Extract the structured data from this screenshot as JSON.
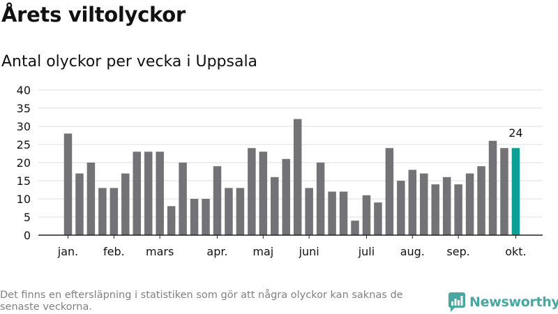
{
  "title": "Årets viltolyckor",
  "subtitle": "Antal olyckor per vecka i Uppsala",
  "footnote": "Det finns en eftersläpning i statistiken som gör att några olyckor kan saknas de senaste veckorna.",
  "brand": {
    "name": "Newsworthy",
    "icon": "newsworthy-logo-icon",
    "color": "#4aa6a0"
  },
  "colors": {
    "bar": "#737277",
    "highlight": "#0d9f96",
    "grid": "#dddddd",
    "axis": "#222222"
  },
  "chart_data": {
    "type": "bar",
    "title": "Årets viltolyckor",
    "subtitle": "Antal olyckor per vecka i Uppsala",
    "xlabel": "",
    "ylabel": "",
    "ylim": [
      0,
      40
    ],
    "yticks": [
      0,
      5,
      10,
      15,
      20,
      25,
      30,
      35,
      40
    ],
    "grid": true,
    "legend": false,
    "x_month_labels": [
      {
        "label": "jan.",
        "at_bar": 0
      },
      {
        "label": "feb.",
        "at_bar": 4
      },
      {
        "label": "mars",
        "at_bar": 8
      },
      {
        "label": "apr.",
        "at_bar": 13
      },
      {
        "label": "maj",
        "at_bar": 17
      },
      {
        "label": "juni",
        "at_bar": 21
      },
      {
        "label": "juli",
        "at_bar": 26
      },
      {
        "label": "aug.",
        "at_bar": 30
      },
      {
        "label": "sep.",
        "at_bar": 34
      },
      {
        "label": "okt.",
        "at_bar": 39
      }
    ],
    "values": [
      28,
      17,
      20,
      13,
      13,
      17,
      23,
      23,
      23,
      8,
      20,
      10,
      10,
      19,
      13,
      13,
      24,
      23,
      16,
      21,
      32,
      13,
      20,
      12,
      12,
      4,
      11,
      9,
      24,
      15,
      18,
      17,
      14,
      16,
      14,
      17,
      19,
      26,
      24,
      24
    ],
    "highlight_index": 39,
    "data_labels": [
      {
        "index": 39,
        "text": "24"
      }
    ]
  }
}
